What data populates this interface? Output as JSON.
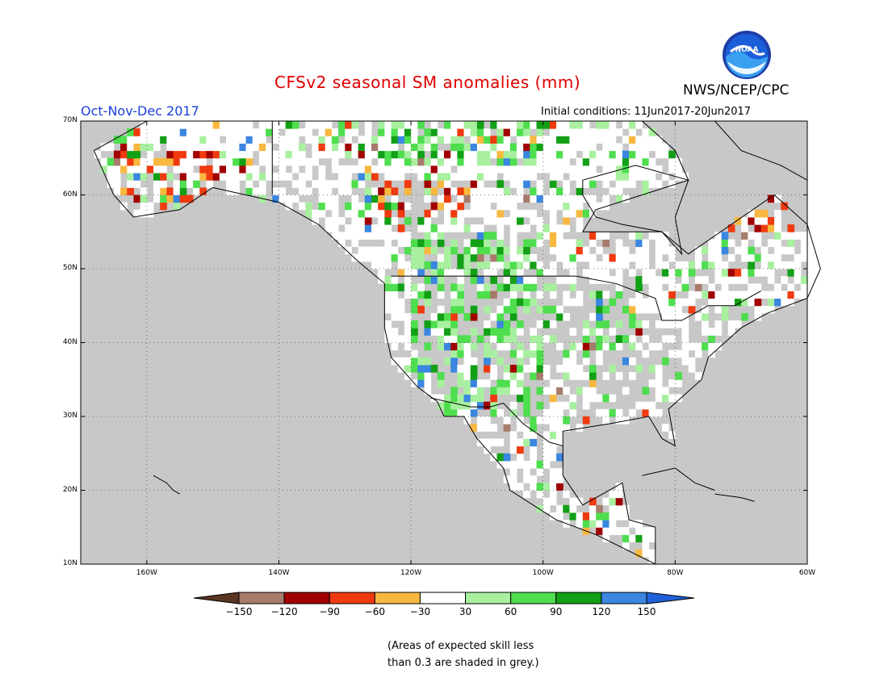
{
  "title": "CFSv2 seasonal SM anomalies (mm)",
  "season": "Oct-Nov-Dec 2017",
  "initial_conditions": "Initial conditions: 11Jun2017-20Jun2017",
  "organization": "NWS/NCEP/CPC",
  "logo_text": "NOAA",
  "note_lines": [
    "(Areas of expected skill less",
    "than 0.3 are shaded in grey.)"
  ],
  "map": {
    "lat_ticks": [
      "70N",
      "60N",
      "50N",
      "40N",
      "30N",
      "20N",
      "10N"
    ],
    "lon_ticks": [
      "160W",
      "140W",
      "120W",
      "100W",
      "80W",
      "60W"
    ],
    "colors": {
      "grey_mask": "#c8c8c8",
      "no_data": "#ffffff"
    }
  },
  "colorbar": {
    "tick_labels": [
      "−150",
      "−120",
      "−90",
      "−60",
      "−30",
      "30",
      "60",
      "90",
      "120",
      "150"
    ],
    "colors": [
      "#5a3520",
      "#a77b6b",
      "#a10000",
      "#f03a10",
      "#f8b840",
      "#ffffff",
      "#a8f0a0",
      "#4ede4e",
      "#12a016",
      "#3a86e0",
      "#2060d8"
    ]
  }
}
